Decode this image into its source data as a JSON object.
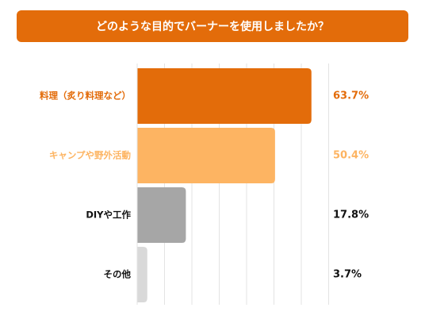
{
  "chart_data": {
    "type": "bar",
    "orientation": "horizontal",
    "title": "どのような目的でバーナーを使用しましたか？",
    "categories": [
      "料理（炙り料理など）",
      "キャンプや野外活動",
      "DIYや工作",
      "その他"
    ],
    "values": [
      63.7,
      50.4,
      17.8,
      3.7
    ],
    "value_labels": [
      "63.7%",
      "50.4%",
      "17.8%",
      "3.7%"
    ],
    "bar_colors": [
      "#e36c0a",
      "#fdb462",
      "#a6a6a6",
      "#d9d9d9"
    ],
    "label_colors": [
      "#e36c0a",
      "#fdb462",
      "#111111",
      "#111111"
    ],
    "xlim": [
      0,
      70
    ],
    "grid": true,
    "legend": "none"
  }
}
